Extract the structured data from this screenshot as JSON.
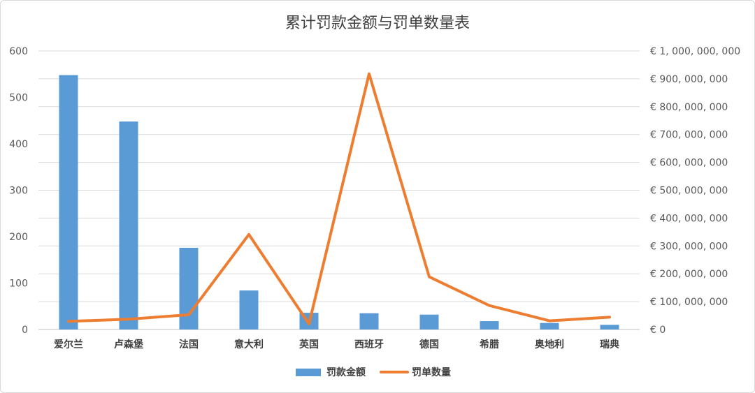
{
  "chart_data": {
    "type": "bar+line",
    "title": "累计罚款金额与罚单数量表",
    "categories": [
      "爱尔兰",
      "卢森堡",
      "法国",
      "意大利",
      "英国",
      "西班牙",
      "德国",
      "希腊",
      "奥地利",
      "瑞典"
    ],
    "series": [
      {
        "name": "罚款金额",
        "type": "bar",
        "axis": "left",
        "color": "#5b9bd5",
        "values": [
          548,
          448,
          176,
          84,
          36,
          35,
          32,
          18,
          14,
          10
        ]
      },
      {
        "name": "罚单数量",
        "type": "line",
        "axis": "right",
        "color": "#ed7d31",
        "values": [
          29000000,
          37000000,
          53000000,
          341000000,
          20000000,
          918000000,
          189000000,
          86000000,
          31000000,
          44000000
        ]
      }
    ],
    "left_axis": {
      "ylim": [
        0,
        600
      ],
      "ticks": [
        "0",
        "100",
        "200",
        "300",
        "400",
        "500",
        "600"
      ]
    },
    "right_axis": {
      "ylim": [
        0,
        1000000000
      ],
      "ticks": [
        "€ 0",
        "€ 100, 000, 000",
        "€ 200, 000, 000",
        "€ 300, 000, 000",
        "€ 400, 000, 000",
        "€ 500, 000, 000",
        "€ 600, 000, 000",
        "€ 700, 000, 000",
        "€ 800, 000, 000",
        "€ 900, 000, 000",
        "€ 1, 000, 000, 000"
      ]
    },
    "grid": true,
    "legend": "bottom"
  }
}
